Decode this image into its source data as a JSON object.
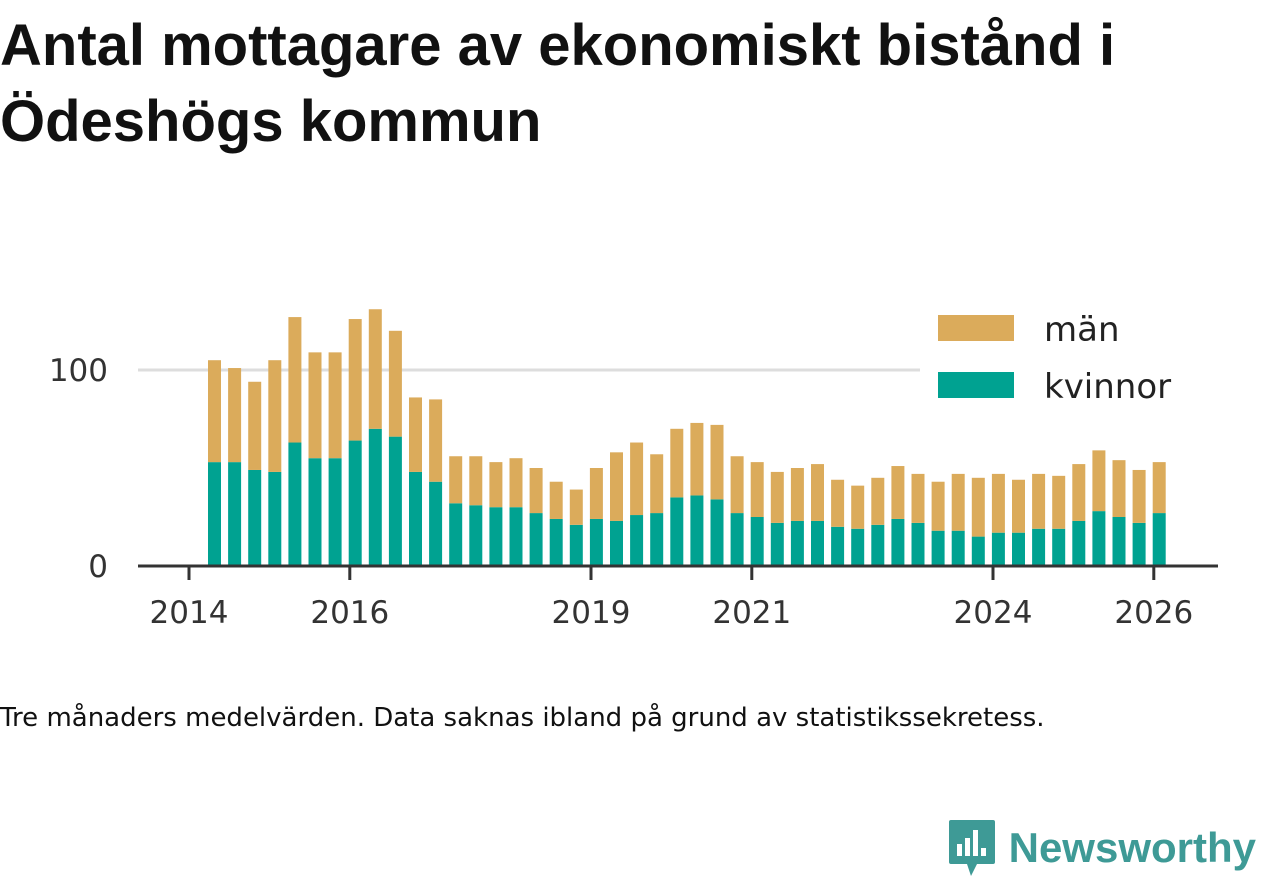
{
  "chart_data": {
    "type": "bar",
    "stacked": true,
    "title": "Antal mottagare av ekonomiskt bistånd i Ödeshögs kommun",
    "xlabel": "",
    "ylabel": "",
    "ylim": [
      0,
      140
    ],
    "yticks": [
      0,
      100
    ],
    "xticks": [
      "2014",
      "2016",
      "2019",
      "2021",
      "2024",
      "2026"
    ],
    "legend_position": "top-right",
    "series": [
      {
        "name": "kvinnor",
        "color": "#00a291",
        "values": [
          53,
          53,
          49,
          48,
          63,
          55,
          55,
          64,
          70,
          66,
          48,
          43,
          32,
          31,
          30,
          30,
          27,
          24,
          21,
          24,
          23,
          26,
          27,
          35,
          36,
          34,
          27,
          25,
          22,
          23,
          23,
          20,
          19,
          21,
          24,
          22,
          18,
          18,
          15,
          17,
          17,
          19,
          19,
          23,
          28,
          25,
          22,
          27
        ]
      },
      {
        "name": "män",
        "color": "#dbab5b",
        "values": [
          52,
          48,
          45,
          57,
          64,
          54,
          54,
          62,
          61,
          54,
          38,
          42,
          24,
          25,
          23,
          25,
          23,
          19,
          18,
          26,
          35,
          37,
          30,
          35,
          37,
          38,
          29,
          28,
          26,
          27,
          29,
          24,
          22,
          24,
          27,
          25,
          25,
          29,
          30,
          30,
          27,
          28,
          27,
          29,
          31,
          29,
          27,
          26
        ]
      }
    ],
    "footnote": "Tre månaders medelvärden. Data saknas ibland på grund av statistikssekretess.",
    "brand": "Newsworthy"
  }
}
